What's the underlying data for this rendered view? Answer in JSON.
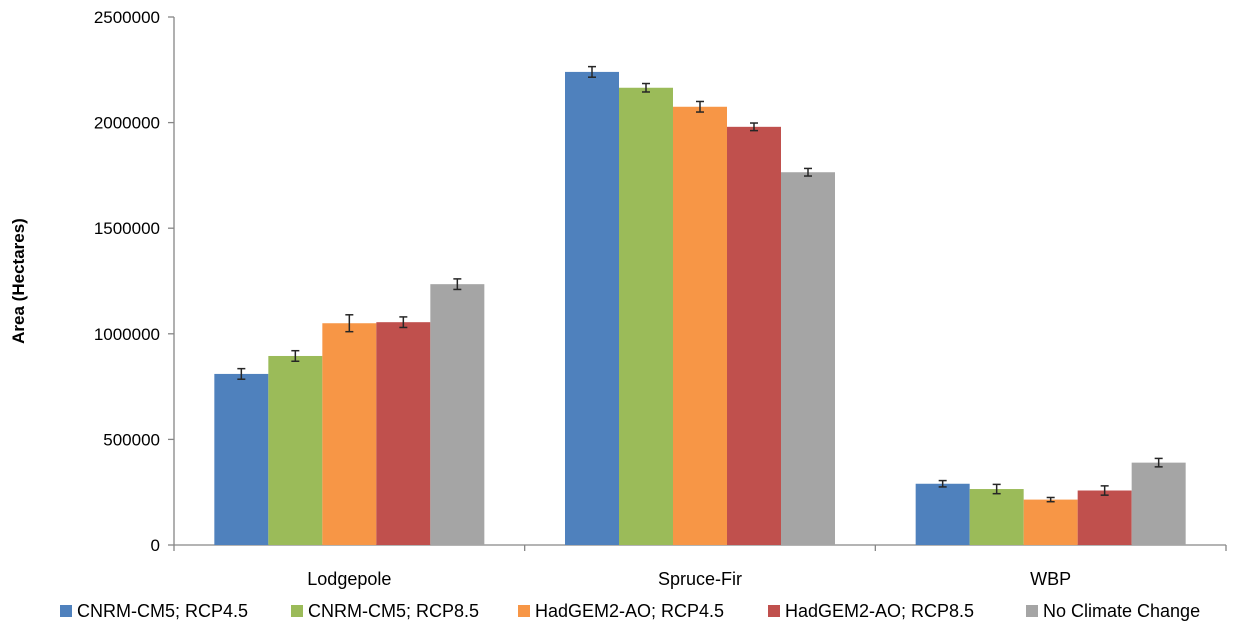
{
  "chart_data": {
    "type": "bar",
    "title": "",
    "xlabel": "",
    "ylabel": "Area (Hectares)",
    "ylim": [
      0,
      2500000
    ],
    "yticks": [
      0,
      500000,
      1000000,
      1500000,
      2000000,
      2500000
    ],
    "ytick_labels": [
      "0",
      "500000",
      "1000000",
      "1500000",
      "2000000",
      "2500000"
    ],
    "grid": false,
    "legend_position": "bottom",
    "categories": [
      "Lodgepole",
      "Spruce-Fir",
      "WBP"
    ],
    "series": [
      {
        "name": "CNRM-CM5; RCP4.5",
        "color": "#4f81bd",
        "values": [
          810000,
          2240000,
          290000
        ],
        "errors": [
          25000,
          25000,
          15000
        ]
      },
      {
        "name": "CNRM-CM5; RCP8.5",
        "color": "#9bbb59",
        "values": [
          895000,
          2165000,
          265000
        ],
        "errors": [
          25000,
          20000,
          22000
        ]
      },
      {
        "name": "HadGEM2-AO; RCP4.5",
        "color": "#f79646",
        "values": [
          1050000,
          2075000,
          215000
        ],
        "errors": [
          40000,
          25000,
          10000
        ]
      },
      {
        "name": "HadGEM2-AO; RCP8.5",
        "color": "#c0504d",
        "values": [
          1055000,
          1980000,
          258000
        ],
        "errors": [
          25000,
          18000,
          22000
        ]
      },
      {
        "name": "No Climate Change",
        "color": "#a5a5a5",
        "values": [
          1235000,
          1765000,
          390000
        ],
        "errors": [
          25000,
          18000,
          20000
        ]
      }
    ]
  }
}
